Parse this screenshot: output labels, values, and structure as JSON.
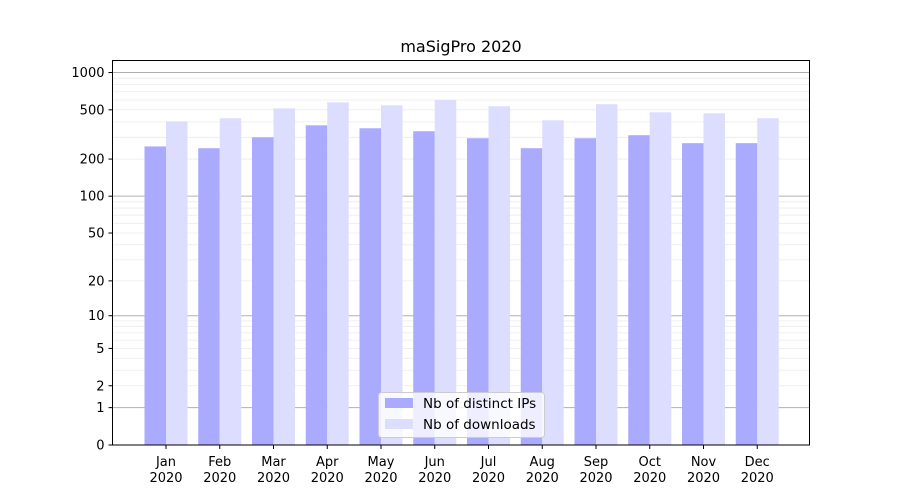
{
  "chart_data": {
    "type": "bar",
    "title": "maSigPro 2020",
    "xlabel": "",
    "ylabel": "",
    "yscale": "log10(1+y)",
    "ylim": [
      0,
      1250
    ],
    "yticks": [
      0,
      1,
      2,
      5,
      10,
      20,
      50,
      100,
      200,
      500,
      1000
    ],
    "grid": true,
    "legend_position": "lower center",
    "categories": [
      "Jan\n2020",
      "Feb\n2020",
      "Mar\n2020",
      "Apr\n2020",
      "May\n2020",
      "Jun\n2020",
      "Jul\n2020",
      "Aug\n2020",
      "Sep\n2020",
      "Oct\n2020",
      "Nov\n2020",
      "Dec\n2020"
    ],
    "series": [
      {
        "name": "Nb of distinct IPs",
        "color": "#aaaaff",
        "values": [
          253,
          245,
          300,
          375,
          355,
          336,
          295,
          245,
          295,
          312,
          269,
          269
        ]
      },
      {
        "name": "Nb of downloads",
        "color": "#ddddff",
        "values": [
          404,
          428,
          514,
          575,
          544,
          601,
          534,
          412,
          555,
          478,
          469,
          428
        ]
      }
    ]
  }
}
